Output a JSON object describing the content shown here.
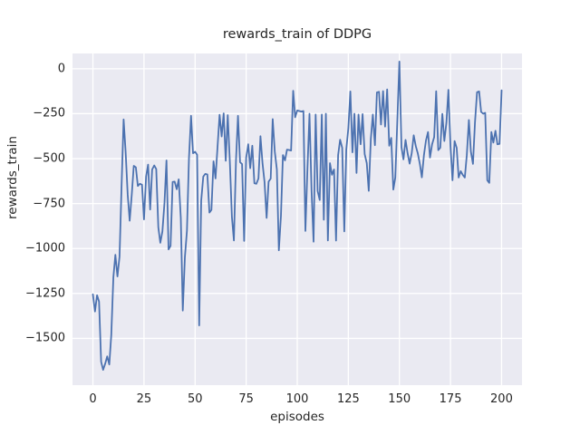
{
  "chart_data": {
    "type": "line",
    "title": "rewards_train of DDPG",
    "xlabel": "episodes",
    "ylabel": "rewards_train",
    "x_ticks": [
      0,
      25,
      50,
      75,
      100,
      125,
      150,
      175,
      200
    ],
    "y_ticks": [
      0,
      -250,
      -500,
      -750,
      -1000,
      -1250,
      -1500
    ],
    "xlim": [
      -10,
      210
    ],
    "ylim": [
      -1760,
      85
    ],
    "grid": true,
    "legend_position": "none",
    "line_color": "#4c72b0",
    "grid_color": "#ffffff",
    "plot_background": "#eaeaf2",
    "figure_background": "#ffffff",
    "text_color": "#262626",
    "x_start": 0,
    "x_step": 1,
    "series": [
      {
        "name": "rewards_train",
        "values": [
          -1255,
          -1350,
          -1260,
          -1295,
          -1630,
          -1675,
          -1640,
          -1600,
          -1645,
          -1480,
          -1160,
          -1035,
          -1155,
          -1045,
          -660,
          -282,
          -460,
          -700,
          -845,
          -700,
          -540,
          -548,
          -652,
          -640,
          -645,
          -838,
          -600,
          -533,
          -783,
          -560,
          -538,
          -558,
          -882,
          -968,
          -905,
          -745,
          -510,
          -1005,
          -985,
          -630,
          -628,
          -670,
          -615,
          -830,
          -1345,
          -1050,
          -900,
          -500,
          -262,
          -470,
          -462,
          -478,
          -1428,
          -735,
          -600,
          -585,
          -588,
          -800,
          -785,
          -515,
          -610,
          -430,
          -256,
          -377,
          -248,
          -512,
          -258,
          -515,
          -825,
          -955,
          -510,
          -262,
          -520,
          -530,
          -958,
          -495,
          -420,
          -553,
          -428,
          -637,
          -640,
          -610,
          -375,
          -527,
          -630,
          -830,
          -628,
          -611,
          -280,
          -460,
          -560,
          -1010,
          -820,
          -480,
          -510,
          -450,
          -452,
          -455,
          -122,
          -270,
          -232,
          -235,
          -238,
          -235,
          -902,
          -550,
          -250,
          -680,
          -962,
          -255,
          -680,
          -730,
          -255,
          -840,
          -250,
          -955,
          -525,
          -590,
          -560,
          -956,
          -480,
          -395,
          -440,
          -905,
          -450,
          -330,
          -126,
          -465,
          -250,
          -580,
          -255,
          -420,
          -252,
          -475,
          -525,
          -679,
          -390,
          -255,
          -425,
          -132,
          -128,
          -310,
          -124,
          -322,
          -115,
          -428,
          -385,
          -672,
          -605,
          -280,
          40,
          -436,
          -504,
          -396,
          -468,
          -528,
          -470,
          -370,
          -430,
          -470,
          -530,
          -604,
          -480,
          -400,
          -352,
          -494,
          -420,
          -380,
          -125,
          -453,
          -440,
          -251,
          -402,
          -300,
          -117,
          -430,
          -620,
          -402,
          -440,
          -605,
          -570,
          -590,
          -605,
          -480,
          -285,
          -461,
          -529,
          -300,
          -130,
          -126,
          -240,
          -250,
          -245,
          -620,
          -635,
          -352,
          -411,
          -345,
          -420,
          -418,
          -120
        ]
      }
    ]
  }
}
